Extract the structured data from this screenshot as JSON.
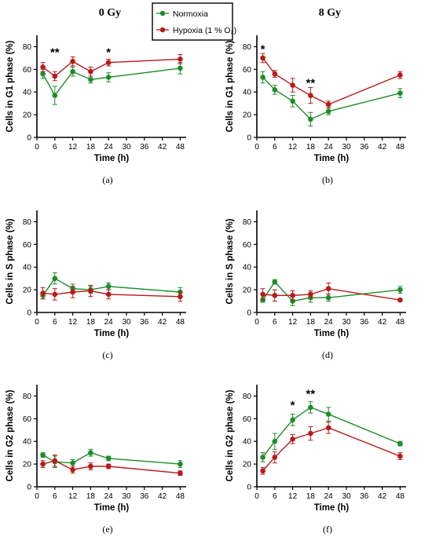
{
  "column_titles": [
    "0 Gy",
    "8 Gy"
  ],
  "legend": {
    "items": [
      {
        "label": "Normoxia",
        "color": "#1e8c2a"
      },
      {
        "label": "Hypoxia (1 % O₂)",
        "color": "#b8191b"
      }
    ]
  },
  "chart_data": [
    {
      "type": "line",
      "panel_label": "(a)",
      "xlabel": "Time (h)",
      "ylabel": "Cells in G1 phase (%)",
      "x": [
        2,
        6,
        12,
        18,
        24,
        48
      ],
      "xticks": [
        0,
        6,
        12,
        18,
        24,
        30,
        36,
        42,
        48
      ],
      "xlim": [
        0,
        50
      ],
      "yticks": [
        0,
        20,
        40,
        60,
        80
      ],
      "ylim": [
        0,
        90
      ],
      "series": [
        {
          "name": "Normoxia",
          "color": "#1e8c2a",
          "values": [
            56,
            37,
            58,
            51,
            53,
            61
          ],
          "errors": [
            4,
            8,
            4,
            3,
            4,
            5
          ]
        },
        {
          "name": "Hypoxia (1 % O₂)",
          "color": "#b8191b",
          "values": [
            62,
            54,
            67,
            58,
            66,
            69
          ],
          "errors": [
            4,
            4,
            4,
            4,
            3,
            4
          ]
        }
      ],
      "annotations": [
        {
          "x": 6,
          "y": 75,
          "text": "**"
        },
        {
          "x": 24,
          "y": 75,
          "text": "*"
        }
      ]
    },
    {
      "type": "line",
      "panel_label": "(b)",
      "xlabel": "Time (h)",
      "ylabel": "Cells in G1 phase (%)",
      "x": [
        2,
        6,
        12,
        18,
        24,
        48
      ],
      "xticks": [
        0,
        6,
        12,
        18,
        24,
        30,
        36,
        42,
        48
      ],
      "xlim": [
        0,
        50
      ],
      "yticks": [
        0,
        20,
        40,
        60,
        80
      ],
      "ylim": [
        0,
        90
      ],
      "series": [
        {
          "name": "Normoxia",
          "color": "#1e8c2a",
          "values": [
            53,
            42,
            32,
            16,
            23,
            39
          ],
          "errors": [
            5,
            4,
            5,
            6,
            3,
            4
          ]
        },
        {
          "name": "Hypoxia (1 % O₂)",
          "color": "#b8191b",
          "values": [
            70,
            56,
            46,
            37,
            29,
            55
          ],
          "errors": [
            4,
            3,
            6,
            7,
            3,
            3
          ]
        }
      ],
      "annotations": [
        {
          "x": 2,
          "y": 78,
          "text": "*"
        },
        {
          "x": 18,
          "y": 48,
          "text": "**"
        }
      ]
    },
    {
      "type": "line",
      "panel_label": "(c)",
      "xlabel": "Time (h)",
      "ylabel": "Cells in S phase (%)",
      "x": [
        2,
        6,
        12,
        18,
        24,
        48
      ],
      "xticks": [
        0,
        6,
        12,
        18,
        24,
        30,
        36,
        42,
        48
      ],
      "xlim": [
        0,
        50
      ],
      "yticks": [
        0,
        20,
        40,
        60,
        80
      ],
      "ylim": [
        0,
        90
      ],
      "series": [
        {
          "name": "Normoxia",
          "color": "#1e8c2a",
          "values": [
            15,
            30,
            21,
            20,
            23,
            18
          ],
          "errors": [
            3,
            5,
            4,
            3,
            3,
            4
          ]
        },
        {
          "name": "Hypoxia (1 % O₂)",
          "color": "#b8191b",
          "values": [
            17,
            16,
            18,
            19,
            16,
            14
          ],
          "errors": [
            5,
            5,
            5,
            5,
            4,
            4
          ]
        }
      ],
      "annotations": []
    },
    {
      "type": "line",
      "panel_label": "(d)",
      "xlabel": "Time (h)",
      "ylabel": "Cells in S phase (%)",
      "x": [
        2,
        6,
        12,
        18,
        24,
        48
      ],
      "xticks": [
        0,
        6,
        12,
        18,
        24,
        30,
        36,
        42,
        48
      ],
      "xlim": [
        0,
        50
      ],
      "yticks": [
        0,
        20,
        40,
        60,
        80
      ],
      "ylim": [
        0,
        90
      ],
      "series": [
        {
          "name": "Normoxia",
          "color": "#1e8c2a",
          "values": [
            11,
            27,
            10,
            13,
            13,
            20
          ],
          "errors": [
            2,
            2,
            4,
            4,
            3,
            3
          ]
        },
        {
          "name": "Hypoxia (1 % O₂)",
          "color": "#b8191b",
          "values": [
            16,
            15,
            15,
            16,
            21,
            11
          ],
          "errors": [
            5,
            5,
            4,
            3,
            5,
            1
          ]
        }
      ],
      "annotations": []
    },
    {
      "type": "line",
      "panel_label": "(e)",
      "xlabel": "Time (h)",
      "ylabel": "Cells in G2 phase (%)",
      "x": [
        2,
        6,
        12,
        18,
        24,
        48
      ],
      "xticks": [
        0,
        6,
        12,
        18,
        24,
        30,
        36,
        42,
        48
      ],
      "xlim": [
        0,
        50
      ],
      "yticks": [
        0,
        20,
        40,
        60,
        80
      ],
      "ylim": [
        0,
        90
      ],
      "series": [
        {
          "name": "Normoxia",
          "color": "#1e8c2a",
          "values": [
            28,
            22,
            21,
            30,
            25,
            20
          ],
          "errors": [
            2,
            5,
            3,
            3,
            2,
            3
          ]
        },
        {
          "name": "Hypoxia (1 % O₂)",
          "color": "#b8191b",
          "values": [
            20,
            23,
            15,
            18,
            18,
            12
          ],
          "errors": [
            3,
            5,
            3,
            3,
            2,
            2
          ]
        }
      ],
      "annotations": []
    },
    {
      "type": "line",
      "panel_label": "(f)",
      "xlabel": "Time (h)",
      "ylabel": "Cells in G2 phase (%)",
      "x": [
        2,
        6,
        12,
        18,
        24,
        48
      ],
      "xticks": [
        0,
        6,
        12,
        18,
        24,
        30,
        36,
        42,
        48
      ],
      "xlim": [
        0,
        50
      ],
      "yticks": [
        0,
        20,
        40,
        60,
        80
      ],
      "ylim": [
        0,
        90
      ],
      "series": [
        {
          "name": "Normoxia",
          "color": "#1e8c2a",
          "values": [
            26,
            40,
            59,
            70,
            64,
            38
          ],
          "errors": [
            4,
            7,
            5,
            5,
            6,
            2
          ]
        },
        {
          "name": "Hypoxia (1 % O₂)",
          "color": "#b8191b",
          "values": [
            14,
            26,
            42,
            47,
            52,
            27
          ],
          "errors": [
            3,
            5,
            4,
            6,
            5,
            3
          ]
        }
      ],
      "annotations": [
        {
          "x": 12,
          "y": 72,
          "text": "*"
        },
        {
          "x": 18,
          "y": 82,
          "text": "**"
        }
      ]
    }
  ]
}
